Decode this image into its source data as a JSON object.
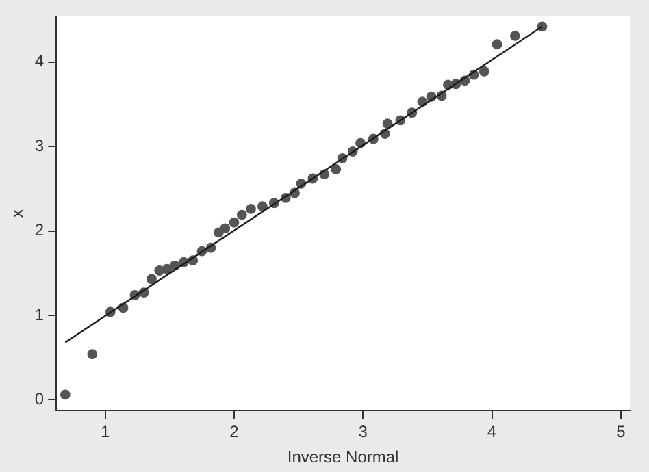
{
  "chart_data": {
    "type": "scatter",
    "xlabel": "Inverse Normal",
    "ylabel": "x",
    "xlim": [
      0.62,
      5.07
    ],
    "xticks": [
      1,
      2,
      3,
      4,
      5
    ],
    "ylim": [
      -0.13,
      4.54
    ],
    "yticks": [
      0,
      1,
      2,
      3,
      4
    ],
    "grid": false,
    "legend": false,
    "series": [
      {
        "marker": "circle",
        "color": "#555555",
        "x": [
          0.69,
          0.9,
          1.04,
          1.14,
          1.23,
          1.3,
          1.36,
          1.42,
          1.48,
          1.54,
          1.61,
          1.68,
          1.75,
          1.82,
          1.88,
          1.93,
          2.0,
          2.06,
          2.13,
          2.22,
          2.31,
          2.4,
          2.47,
          2.52,
          2.61,
          2.7,
          2.79,
          2.84,
          2.92,
          2.98,
          3.08,
          3.17,
          3.19,
          3.29,
          3.38,
          3.46,
          3.53,
          3.61,
          3.66,
          3.72,
          3.79,
          3.86,
          3.94,
          4.04,
          4.18,
          4.39
        ],
        "values": [
          0.06,
          0.54,
          1.04,
          1.09,
          1.24,
          1.27,
          1.43,
          1.53,
          1.55,
          1.59,
          1.63,
          1.65,
          1.76,
          1.8,
          1.98,
          2.03,
          2.1,
          2.19,
          2.26,
          2.29,
          2.33,
          2.39,
          2.45,
          2.56,
          2.62,
          2.67,
          2.73,
          2.86,
          2.94,
          3.04,
          3.09,
          3.15,
          3.27,
          3.31,
          3.4,
          3.53,
          3.59,
          3.6,
          3.73,
          3.74,
          3.78,
          3.85,
          3.89,
          4.21,
          4.31,
          4.42
        ]
      },
      {
        "type": "line",
        "marker": "none",
        "color": "#1a1a1a",
        "x": [
          0.69,
          4.39
        ],
        "values": [
          0.68,
          4.42
        ]
      }
    ]
  }
}
